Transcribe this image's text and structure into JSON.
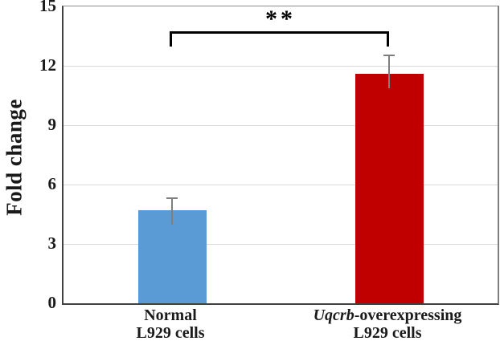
{
  "chart_data": {
    "type": "bar",
    "title": "",
    "xlabel": "",
    "ylabel": "Fold change",
    "ylim": [
      0,
      15
    ],
    "yticks": [
      0,
      3,
      6,
      9,
      12,
      15
    ],
    "grid": true,
    "legend": false,
    "categories": [
      {
        "line1_parts": [
          {
            "text": "Normal",
            "italic": false
          }
        ],
        "line2": "L929 cells"
      },
      {
        "line1_parts": [
          {
            "text": "Uqcrb",
            "italic": true
          },
          {
            "text": "-overexpressing",
            "italic": false
          }
        ],
        "line2": "L929 cells"
      }
    ],
    "values": [
      4.7,
      11.6
    ],
    "errors": [
      0.65,
      0.95
    ],
    "bar_colors": [
      "#5b9bd5",
      "#c00000"
    ],
    "significance": {
      "label": "**",
      "pair": [
        0,
        1
      ],
      "line_y": 13.7,
      "tick_drop": 0.78
    },
    "colors": {
      "gridline": "#d9d9d9",
      "axis": "#404040",
      "plot_border": "#7f7f7f",
      "error_bar": "#7f7f7f",
      "bracket": "#000000",
      "text": "#1a1a1a"
    }
  }
}
